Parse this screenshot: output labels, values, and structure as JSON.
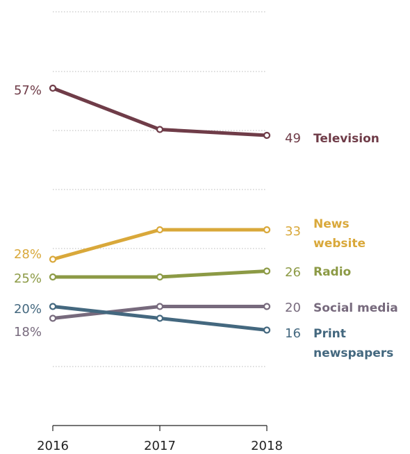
{
  "chart_data": {
    "type": "line",
    "title": "",
    "xlabel": "",
    "ylabel": "",
    "categories": [
      "2016",
      "2017",
      "2018"
    ],
    "ylim": [
      0,
      70
    ],
    "grid": true,
    "legend": "direct labels at right end of each line",
    "series": [
      {
        "name": "Television",
        "color": "#6f3c48",
        "values": [
          57,
          50,
          49
        ],
        "start_label": "57%",
        "end_label": "49",
        "label_lines": [
          "Television"
        ]
      },
      {
        "name": "News website",
        "color": "#d9a83a",
        "values": [
          28,
          33,
          33
        ],
        "start_label": "28%",
        "end_label": "33",
        "label_lines": [
          "News",
          "website"
        ]
      },
      {
        "name": "Radio",
        "color": "#8c9a45",
        "values": [
          25,
          25,
          26
        ],
        "start_label": "25%",
        "end_label": "26",
        "label_lines": [
          "Radio"
        ]
      },
      {
        "name": "Social media",
        "color": "#776a7d",
        "values": [
          18,
          20,
          20
        ],
        "start_label": "18%",
        "end_label": "20",
        "label_lines": [
          "Social media"
        ]
      },
      {
        "name": "Print newspapers",
        "color": "#44687f",
        "values": [
          20,
          18,
          16
        ],
        "start_label": "20%",
        "end_label": "16",
        "label_lines": [
          "Print",
          "newspapers"
        ]
      }
    ]
  }
}
